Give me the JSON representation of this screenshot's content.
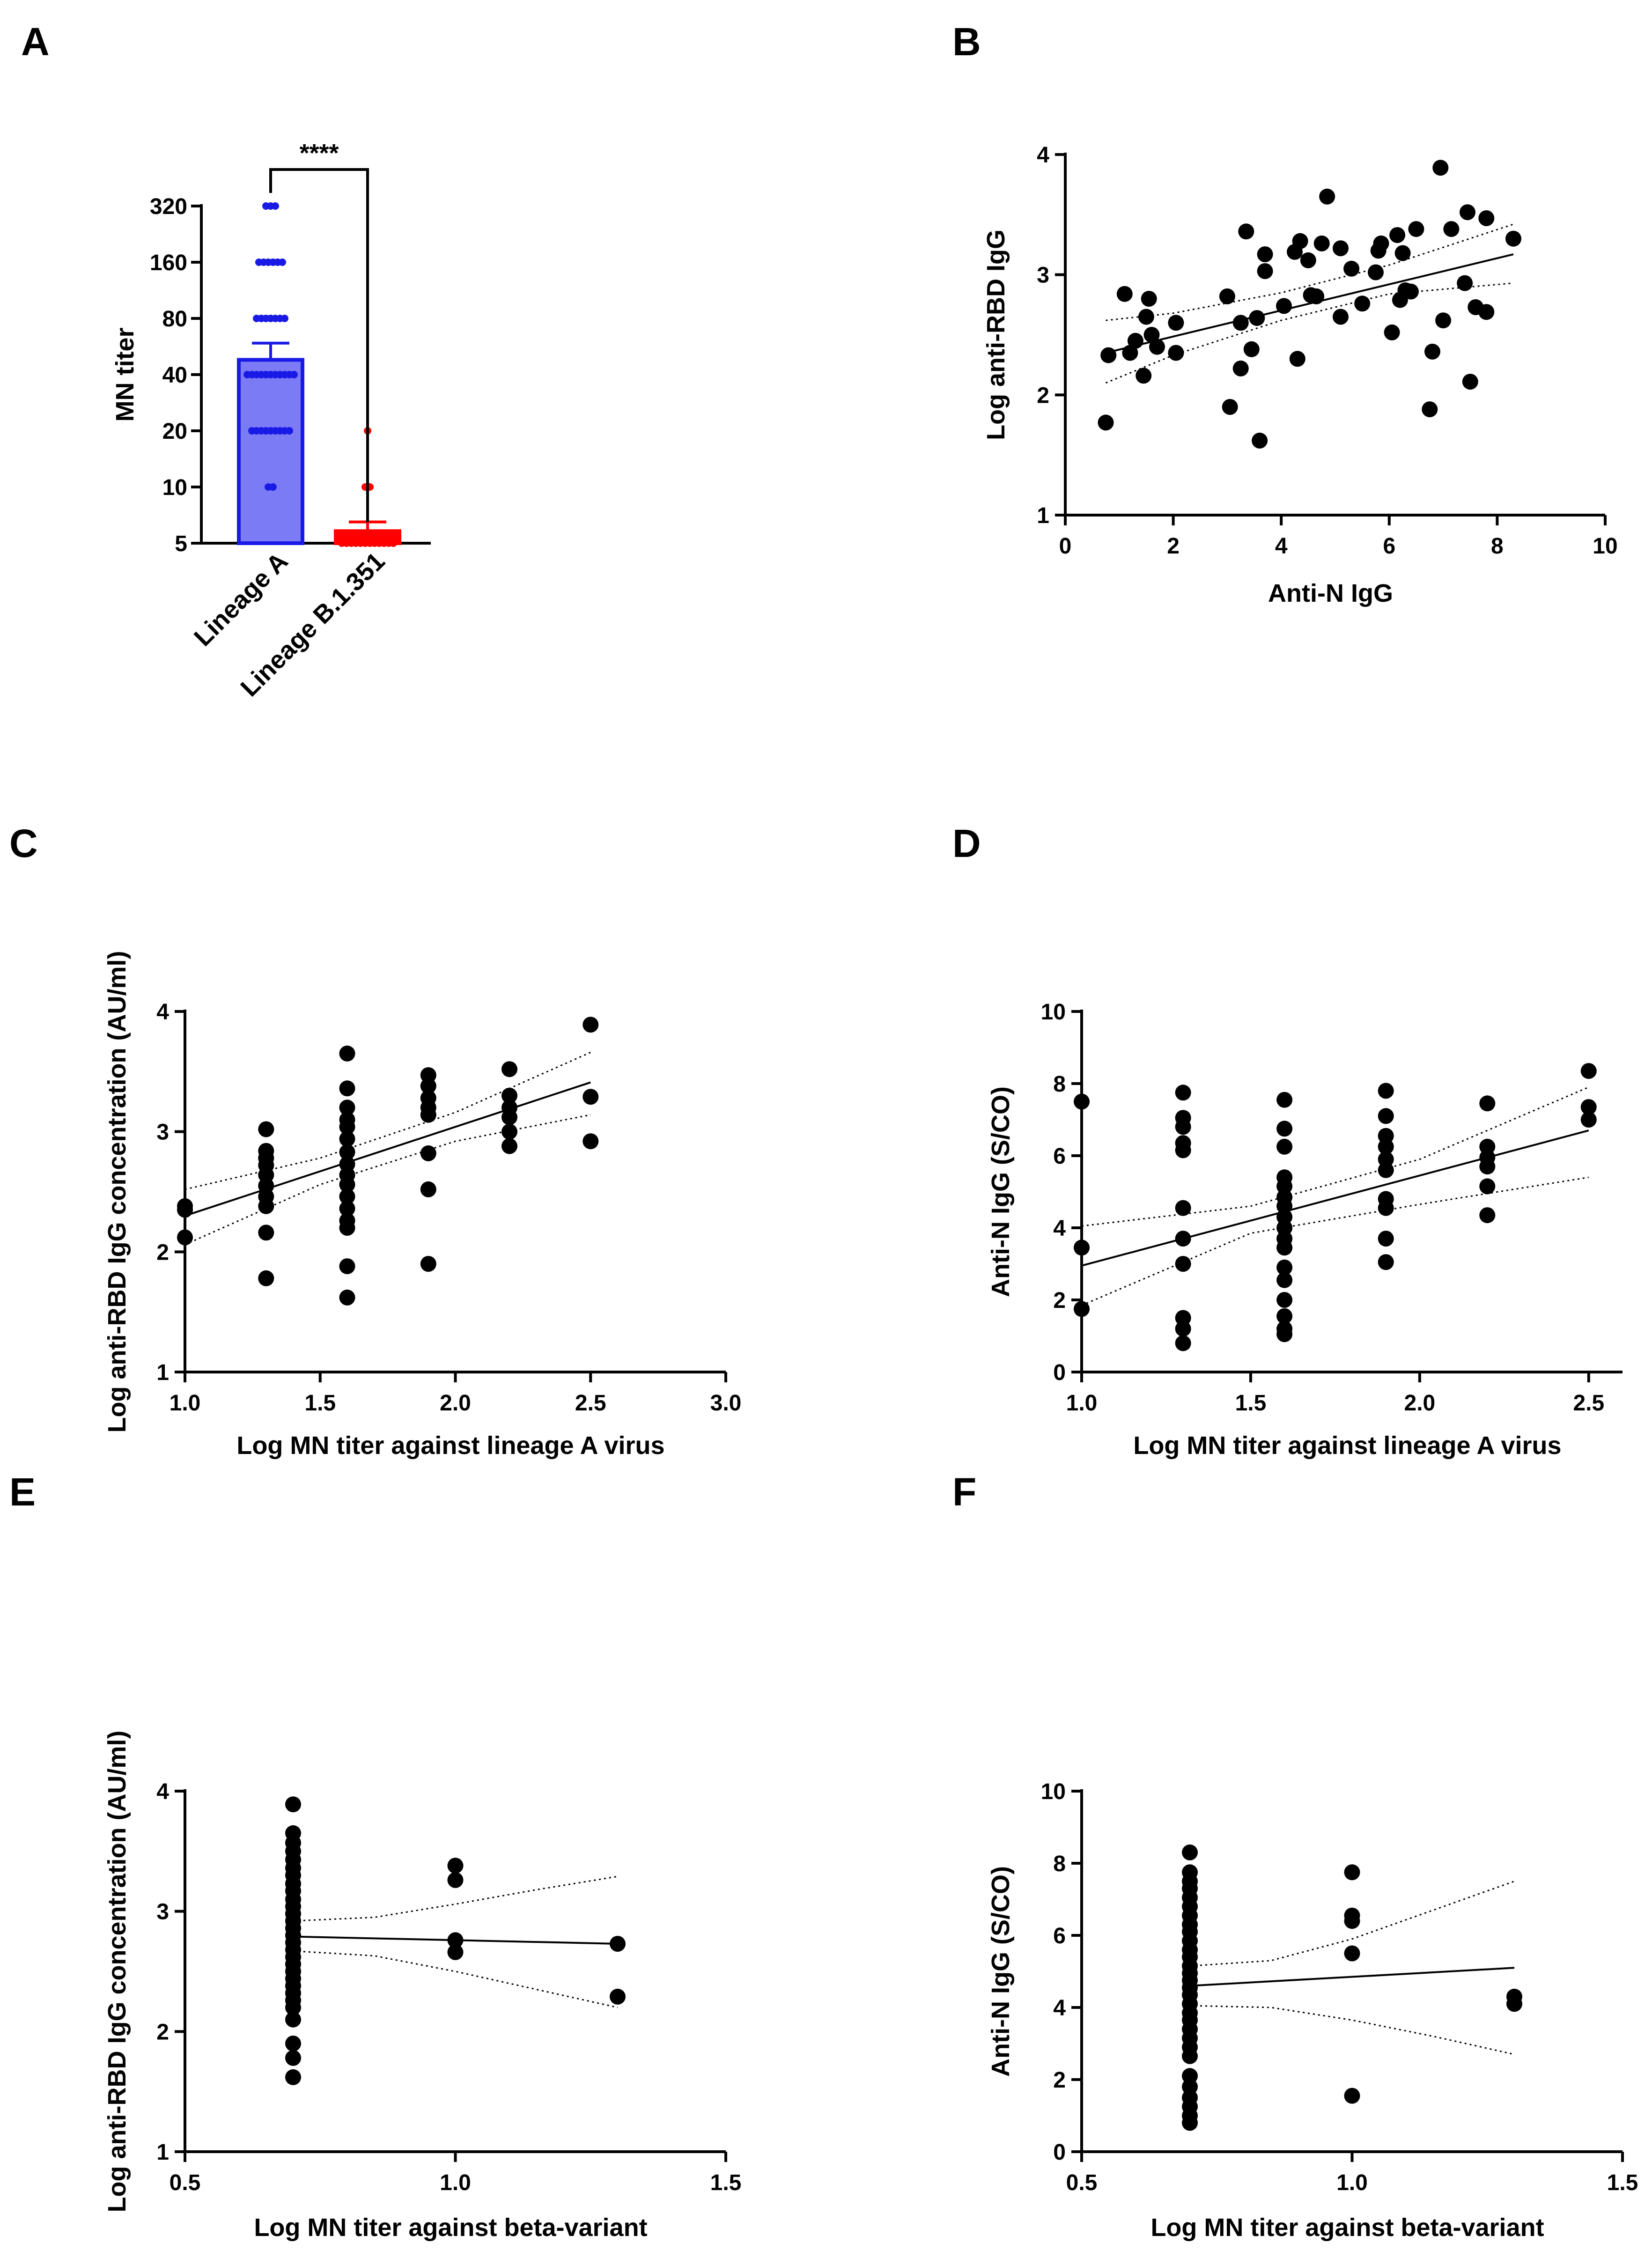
{
  "panels": {
    "A": {
      "letter": "A",
      "ylabel": "MN titer",
      "significance": "****",
      "yticks": [
        "5",
        "10",
        "20",
        "40",
        "80",
        "160",
        "320"
      ],
      "categories": [
        "Lineage A",
        "Lineage B.1.351"
      ]
    },
    "B": {
      "letter": "B",
      "xlabel": "Anti-N IgG",
      "ylabel": "Log anti-RBD IgG",
      "xticks": [
        "0",
        "2",
        "4",
        "6",
        "8",
        "10"
      ],
      "yticks": [
        "1",
        "2",
        "3",
        "4"
      ]
    },
    "C": {
      "letter": "C",
      "xlabel": "Log MN titer against lineage A virus",
      "ylabel": "Log anti-RBD IgG concentration (AU/ml)",
      "xticks": [
        "1.0",
        "1.5",
        "2.0",
        "2.5",
        "3.0"
      ],
      "yticks": [
        "1",
        "2",
        "3",
        "4"
      ]
    },
    "D": {
      "letter": "D",
      "xlabel": "Log  MN titer against lineage A virus",
      "ylabel": "Anti-N IgG (S/CO)",
      "xticks": [
        "1.0",
        "1.5",
        "2.0",
        "2.5"
      ],
      "yticks": [
        "0",
        "2",
        "4",
        "6",
        "8",
        "10"
      ]
    },
    "E": {
      "letter": "E",
      "xlabel": "Log MN titer against beta-variant",
      "ylabel": "Log anti-RBD IgG concentration (AU/ml)",
      "xticks": [
        "0.5",
        "1.0",
        "1.5"
      ],
      "yticks": [
        "1",
        "2",
        "3",
        "4"
      ]
    },
    "F": {
      "letter": "F",
      "xlabel": "Log MN titer against beta-variant",
      "ylabel": "Anti-N IgG (S/CO)",
      "xticks": [
        "0.5",
        "1.0",
        "1.5"
      ],
      "yticks": [
        "0",
        "2",
        "4",
        "6",
        "8",
        "10"
      ]
    }
  },
  "chart_data": [
    {
      "id": "A",
      "type": "bar",
      "title": "",
      "categories": [
        "Lineage A",
        "Lineage B.1.351"
      ],
      "values": [
        48,
        5.8
      ],
      "sem": [
        11,
        0.7
      ],
      "ylabel": "MN titer",
      "yscale": "log2",
      "ylim": [
        5,
        320
      ],
      "colors": [
        "#7b7bf5",
        "#ff0000"
      ],
      "edge_colors": [
        "#1a1ae6",
        "#ff0000"
      ],
      "points": [
        {
          "group": 0,
          "value": 320,
          "n": 3
        },
        {
          "group": 0,
          "value": 160,
          "n": 6
        },
        {
          "group": 0,
          "value": 80,
          "n": 7
        },
        {
          "group": 0,
          "value": 40,
          "n": 11
        },
        {
          "group": 0,
          "value": 20,
          "n": 9
        },
        {
          "group": 0,
          "value": 10,
          "n": 2
        },
        {
          "group": 1,
          "value": 20,
          "n": 1
        },
        {
          "group": 1,
          "value": 10,
          "n": 2
        },
        {
          "group": 1,
          "value": 5,
          "n": 12
        }
      ],
      "significance": "****"
    },
    {
      "id": "B",
      "type": "scatter",
      "xlabel": "Anti-N IgG",
      "ylabel": "Log anti-RBD IgG",
      "xlim": [
        0,
        10
      ],
      "ylim": [
        1,
        4
      ],
      "points": [
        [
          0.75,
          1.77
        ],
        [
          0.8,
          2.33
        ],
        [
          1.1,
          2.84
        ],
        [
          1.2,
          2.35
        ],
        [
          1.3,
          2.45
        ],
        [
          1.45,
          2.16
        ],
        [
          1.5,
          2.65
        ],
        [
          1.55,
          2.8
        ],
        [
          1.6,
          2.5
        ],
        [
          1.7,
          2.4
        ],
        [
          2.05,
          2.35
        ],
        [
          2.05,
          2.6
        ],
        [
          3.0,
          2.82
        ],
        [
          3.05,
          1.9
        ],
        [
          3.25,
          2.22
        ],
        [
          3.25,
          2.6
        ],
        [
          3.35,
          3.36
        ],
        [
          3.45,
          2.38
        ],
        [
          3.55,
          2.64
        ],
        [
          3.6,
          1.62
        ],
        [
          3.7,
          3.03
        ],
        [
          3.7,
          3.17
        ],
        [
          4.05,
          2.74
        ],
        [
          4.25,
          3.19
        ],
        [
          4.3,
          2.3
        ],
        [
          4.35,
          3.28
        ],
        [
          4.5,
          3.12
        ],
        [
          4.55,
          2.83
        ],
        [
          4.65,
          2.82
        ],
        [
          4.75,
          3.26
        ],
        [
          4.85,
          3.65
        ],
        [
          5.1,
          3.22
        ],
        [
          5.1,
          2.65
        ],
        [
          5.3,
          3.05
        ],
        [
          5.5,
          2.76
        ],
        [
          5.75,
          3.02
        ],
        [
          5.8,
          3.2
        ],
        [
          5.85,
          3.26
        ],
        [
          6.05,
          2.52
        ],
        [
          6.15,
          3.33
        ],
        [
          6.2,
          2.79
        ],
        [
          6.25,
          3.18
        ],
        [
          6.3,
          2.87
        ],
        [
          6.4,
          2.86
        ],
        [
          6.5,
          3.38
        ],
        [
          6.75,
          1.88
        ],
        [
          6.8,
          2.36
        ],
        [
          6.95,
          3.89
        ],
        [
          7.0,
          2.62
        ],
        [
          7.15,
          3.38
        ],
        [
          7.4,
          2.93
        ],
        [
          7.45,
          3.52
        ],
        [
          7.5,
          2.11
        ],
        [
          7.6,
          2.73
        ],
        [
          7.8,
          3.47
        ],
        [
          7.8,
          2.69
        ],
        [
          8.3,
          3.3
        ]
      ],
      "fit": {
        "x": [
          0.75,
          8.3
        ],
        "y": [
          2.35,
          3.17
        ]
      },
      "ci_upper": [
        [
          0.75,
          2.62
        ],
        [
          2.0,
          2.68
        ],
        [
          4.0,
          2.85
        ],
        [
          6.0,
          3.08
        ],
        [
          8.3,
          3.42
        ]
      ],
      "ci_lower": [
        [
          0.75,
          2.1
        ],
        [
          2.0,
          2.33
        ],
        [
          4.0,
          2.62
        ],
        [
          6.0,
          2.84
        ],
        [
          8.3,
          2.93
        ]
      ]
    },
    {
      "id": "C",
      "type": "scatter",
      "xlabel": "Log MN titer against lineage A virus",
      "ylabel": "Log anti-RBD IgG concentration (AU/ml)",
      "xlim": [
        1.0,
        3.0
      ],
      "ylim": [
        1,
        4
      ],
      "points": [
        [
          1.0,
          2.38
        ],
        [
          1.0,
          2.35
        ],
        [
          1.0,
          2.12
        ],
        [
          1.3,
          3.02
        ],
        [
          1.3,
          2.84
        ],
        [
          1.3,
          2.78
        ],
        [
          1.3,
          2.72
        ],
        [
          1.3,
          2.64
        ],
        [
          1.3,
          2.55
        ],
        [
          1.3,
          2.46
        ],
        [
          1.3,
          2.38
        ],
        [
          1.3,
          2.16
        ],
        [
          1.3,
          1.78
        ],
        [
          1.6,
          3.65
        ],
        [
          1.6,
          3.36
        ],
        [
          1.6,
          3.2
        ],
        [
          1.6,
          3.1
        ],
        [
          1.6,
          3.04
        ],
        [
          1.6,
          2.94
        ],
        [
          1.6,
          2.83
        ],
        [
          1.6,
          2.73
        ],
        [
          1.6,
          2.64
        ],
        [
          1.6,
          2.56
        ],
        [
          1.6,
          2.46
        ],
        [
          1.6,
          2.36
        ],
        [
          1.6,
          2.26
        ],
        [
          1.6,
          2.2
        ],
        [
          1.6,
          1.88
        ],
        [
          1.6,
          1.62
        ],
        [
          1.9,
          3.47
        ],
        [
          1.9,
          3.38
        ],
        [
          1.9,
          3.28
        ],
        [
          1.9,
          3.2
        ],
        [
          1.9,
          3.14
        ],
        [
          1.9,
          2.82
        ],
        [
          1.9,
          2.52
        ],
        [
          1.9,
          1.9
        ],
        [
          2.2,
          3.52
        ],
        [
          2.2,
          3.3
        ],
        [
          2.2,
          3.2
        ],
        [
          2.2,
          3.12
        ],
        [
          2.2,
          3.0
        ],
        [
          2.2,
          2.88
        ],
        [
          2.5,
          3.89
        ],
        [
          2.5,
          3.29
        ],
        [
          2.5,
          2.92
        ]
      ],
      "fit": {
        "x": [
          1.0,
          2.5
        ],
        "y": [
          2.3,
          3.41
        ]
      },
      "ci_upper": [
        [
          1.0,
          2.52
        ],
        [
          1.5,
          2.78
        ],
        [
          2.0,
          3.16
        ],
        [
          2.5,
          3.66
        ]
      ],
      "ci_lower": [
        [
          1.0,
          2.06
        ],
        [
          1.5,
          2.56
        ],
        [
          2.0,
          2.92
        ],
        [
          2.5,
          3.14
        ]
      ]
    },
    {
      "id": "D",
      "type": "scatter",
      "xlabel": "Log  MN titer against lineage A virus",
      "ylabel": "Anti-N IgG (S/CO)",
      "xlim": [
        1.0,
        2.6
      ],
      "ylim": [
        0,
        10
      ],
      "points": [
        [
          1.0,
          7.5
        ],
        [
          1.0,
          3.45
        ],
        [
          1.0,
          1.75
        ],
        [
          1.3,
          7.75
        ],
        [
          1.3,
          7.05
        ],
        [
          1.3,
          6.8
        ],
        [
          1.3,
          6.35
        ],
        [
          1.3,
          6.15
        ],
        [
          1.3,
          4.55
        ],
        [
          1.3,
          3.7
        ],
        [
          1.3,
          3.0
        ],
        [
          1.3,
          1.5
        ],
        [
          1.3,
          1.2
        ],
        [
          1.3,
          0.8
        ],
        [
          1.6,
          7.55
        ],
        [
          1.6,
          6.75
        ],
        [
          1.6,
          6.25
        ],
        [
          1.6,
          5.4
        ],
        [
          1.6,
          5.15
        ],
        [
          1.6,
          4.85
        ],
        [
          1.6,
          4.6
        ],
        [
          1.6,
          4.3
        ],
        [
          1.6,
          4.0
        ],
        [
          1.6,
          3.7
        ],
        [
          1.6,
          3.45
        ],
        [
          1.6,
          2.9
        ],
        [
          1.6,
          2.55
        ],
        [
          1.6,
          2.0
        ],
        [
          1.6,
          1.55
        ],
        [
          1.6,
          1.2
        ],
        [
          1.6,
          1.05
        ],
        [
          1.9,
          7.8
        ],
        [
          1.9,
          7.1
        ],
        [
          1.9,
          6.55
        ],
        [
          1.9,
          6.25
        ],
        [
          1.9,
          5.9
        ],
        [
          1.9,
          5.6
        ],
        [
          1.9,
          4.8
        ],
        [
          1.9,
          4.55
        ],
        [
          1.9,
          3.7
        ],
        [
          1.9,
          3.05
        ],
        [
          2.2,
          7.45
        ],
        [
          2.2,
          6.25
        ],
        [
          2.2,
          5.95
        ],
        [
          2.2,
          5.7
        ],
        [
          2.2,
          5.15
        ],
        [
          2.2,
          4.35
        ],
        [
          2.5,
          8.35
        ],
        [
          2.5,
          7.35
        ],
        [
          2.5,
          7.0
        ]
      ],
      "fit": {
        "x": [
          1.0,
          2.5
        ],
        "y": [
          2.95,
          6.7
        ]
      },
      "ci_upper": [
        [
          1.0,
          4.05
        ],
        [
          1.5,
          4.6
        ],
        [
          2.0,
          5.9
        ],
        [
          2.5,
          7.9
        ]
      ],
      "ci_lower": [
        [
          1.0,
          1.85
        ],
        [
          1.5,
          3.85
        ],
        [
          2.0,
          4.65
        ],
        [
          2.5,
          5.4
        ]
      ]
    },
    {
      "id": "E",
      "type": "scatter",
      "xlabel": "Log MN titer against beta-variant",
      "ylabel": "Log anti-RBD IgG concentration (AU/ml)",
      "xlim": [
        0.5,
        1.5
      ],
      "ylim": [
        1,
        4
      ],
      "points": [
        [
          0.7,
          3.89
        ],
        [
          0.7,
          3.65
        ],
        [
          0.7,
          3.57
        ],
        [
          0.7,
          3.5
        ],
        [
          0.7,
          3.43
        ],
        [
          0.7,
          3.36
        ],
        [
          0.7,
          3.3
        ],
        [
          0.7,
          3.23
        ],
        [
          0.7,
          3.17
        ],
        [
          0.7,
          3.1
        ],
        [
          0.7,
          3.04
        ],
        [
          0.7,
          2.98
        ],
        [
          0.7,
          2.92
        ],
        [
          0.7,
          2.86
        ],
        [
          0.7,
          2.8
        ],
        [
          0.7,
          2.74
        ],
        [
          0.7,
          2.68
        ],
        [
          0.7,
          2.62
        ],
        [
          0.7,
          2.56
        ],
        [
          0.7,
          2.5
        ],
        [
          0.7,
          2.44
        ],
        [
          0.7,
          2.38
        ],
        [
          0.7,
          2.32
        ],
        [
          0.7,
          2.26
        ],
        [
          0.7,
          2.2
        ],
        [
          0.7,
          2.1
        ],
        [
          0.7,
          1.9
        ],
        [
          0.7,
          1.78
        ],
        [
          0.7,
          1.62
        ],
        [
          1.0,
          3.38
        ],
        [
          1.0,
          3.26
        ],
        [
          1.0,
          2.76
        ],
        [
          1.0,
          2.66
        ],
        [
          1.3,
          2.73
        ],
        [
          1.3,
          2.29
        ]
      ],
      "fit": {
        "x": [
          0.7,
          1.3
        ],
        "y": [
          2.79,
          2.73
        ]
      },
      "ci_upper": [
        [
          0.7,
          2.92
        ],
        [
          0.85,
          2.95
        ],
        [
          1.0,
          3.06
        ],
        [
          1.15,
          3.18
        ],
        [
          1.3,
          3.29
        ]
      ],
      "ci_lower": [
        [
          0.7,
          2.67
        ],
        [
          0.85,
          2.63
        ],
        [
          1.0,
          2.5
        ],
        [
          1.15,
          2.35
        ],
        [
          1.3,
          2.2
        ]
      ]
    },
    {
      "id": "F",
      "type": "scatter",
      "xlabel": "Log MN titer against beta-variant",
      "ylabel": "Anti-N IgG (S/CO)",
      "xlim": [
        0.5,
        1.5
      ],
      "ylim": [
        0,
        10
      ],
      "points": [
        [
          0.7,
          8.3
        ],
        [
          0.7,
          7.75
        ],
        [
          0.7,
          7.5
        ],
        [
          0.7,
          7.3
        ],
        [
          0.7,
          7.05
        ],
        [
          0.7,
          6.8
        ],
        [
          0.7,
          6.55
        ],
        [
          0.7,
          6.3
        ],
        [
          0.7,
          6.1
        ],
        [
          0.7,
          5.85
        ],
        [
          0.7,
          5.6
        ],
        [
          0.7,
          5.4
        ],
        [
          0.7,
          5.15
        ],
        [
          0.7,
          4.95
        ],
        [
          0.7,
          4.75
        ],
        [
          0.7,
          4.55
        ],
        [
          0.7,
          4.35
        ],
        [
          0.7,
          4.1
        ],
        [
          0.7,
          3.85
        ],
        [
          0.7,
          3.65
        ],
        [
          0.7,
          3.4
        ],
        [
          0.7,
          3.15
        ],
        [
          0.7,
          2.9
        ],
        [
          0.7,
          2.65
        ],
        [
          0.7,
          2.1
        ],
        [
          0.7,
          1.8
        ],
        [
          0.7,
          1.5
        ],
        [
          0.7,
          1.25
        ],
        [
          0.7,
          1.0
        ],
        [
          0.7,
          0.8
        ],
        [
          1.0,
          7.75
        ],
        [
          1.0,
          6.55
        ],
        [
          1.0,
          6.4
        ],
        [
          1.0,
          5.5
        ],
        [
          1.0,
          1.55
        ],
        [
          1.3,
          4.3
        ],
        [
          1.3,
          4.1
        ]
      ],
      "fit": {
        "x": [
          0.7,
          1.3
        ],
        "y": [
          4.6,
          5.1
        ]
      },
      "ci_upper": [
        [
          0.7,
          5.15
        ],
        [
          0.85,
          5.3
        ],
        [
          1.0,
          5.9
        ],
        [
          1.15,
          6.7
        ],
        [
          1.3,
          7.5
        ]
      ],
      "ci_lower": [
        [
          0.7,
          4.05
        ],
        [
          0.85,
          4.0
        ],
        [
          1.0,
          3.65
        ],
        [
          1.15,
          3.2
        ],
        [
          1.3,
          2.7
        ]
      ]
    }
  ]
}
